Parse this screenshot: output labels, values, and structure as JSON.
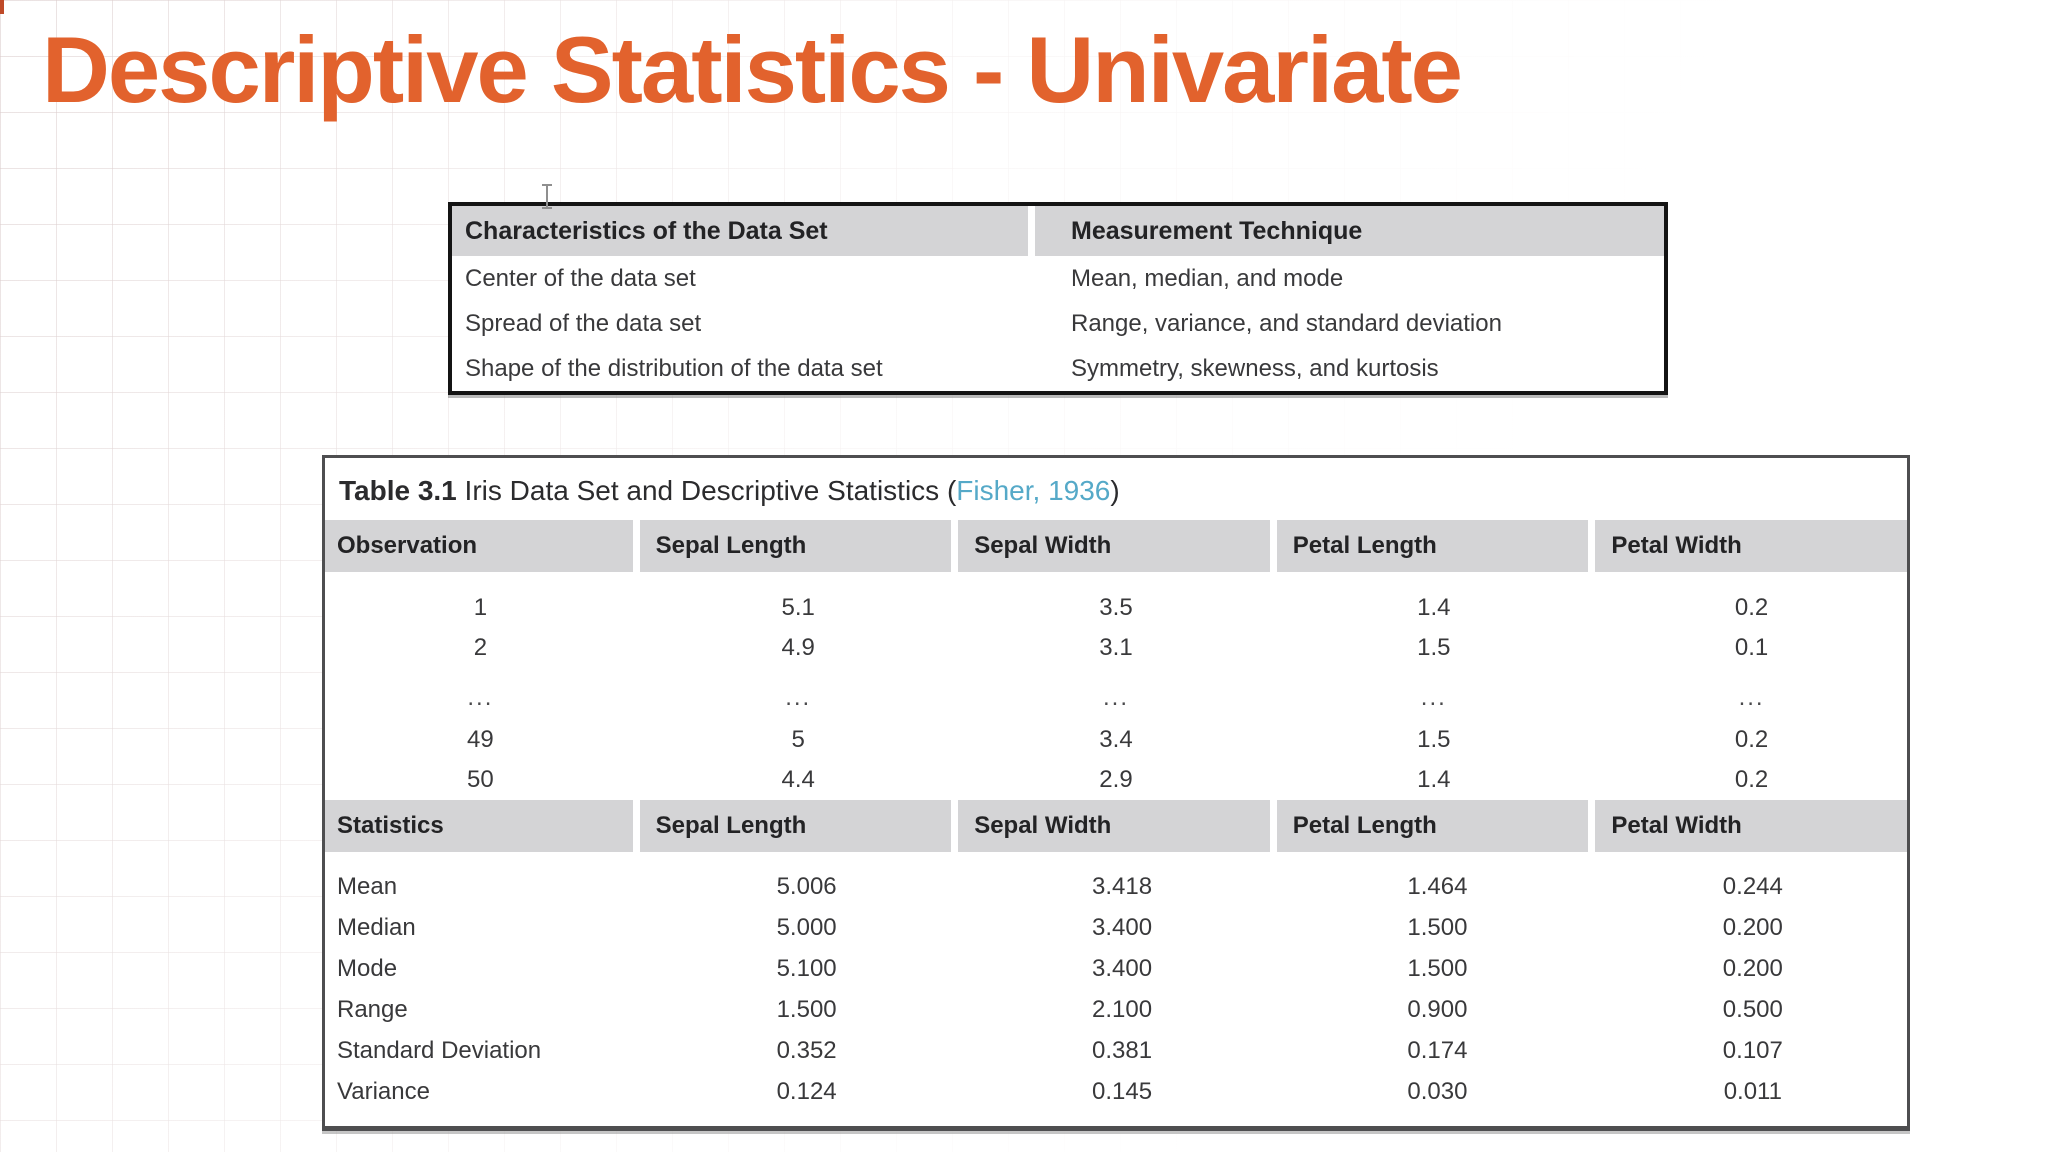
{
  "slide": {
    "title": "Descriptive Statistics - Univariate",
    "title_color": "#E2622D",
    "accent_orange": "#E2622D",
    "header_gray": "#d4d4d6",
    "cite_blue": "#55A9C8"
  },
  "characteristics_table": {
    "columns": [
      "Characteristics of the Data Set",
      "Measurement Technique"
    ],
    "rows": [
      [
        "Center of the data set",
        "Mean, median, and mode"
      ],
      [
        "Spread of the data set",
        "Range, variance, and standard deviation"
      ],
      [
        "Shape of the distribution of the data set",
        "Symmetry, skewness, and kurtosis"
      ]
    ]
  },
  "iris_table": {
    "caption": {
      "label": "Table 3.1",
      "text": " Iris Data Set and Descriptive Statistics (",
      "cite": "Fisher, 1936",
      "close": ")"
    },
    "observation_header": [
      "Observation",
      "Sepal Length",
      "Sepal Width",
      "Petal Length",
      "Petal Width"
    ],
    "observations": [
      [
        "1",
        "5.1",
        "3.5",
        "1.4",
        "0.2"
      ],
      [
        "2",
        "4.9",
        "3.1",
        "1.5",
        "0.1"
      ],
      [
        "...",
        "...",
        "...",
        "...",
        "..."
      ],
      [
        "49",
        "5",
        "3.4",
        "1.5",
        "0.2"
      ],
      [
        "50",
        "4.4",
        "2.9",
        "1.4",
        "0.2"
      ]
    ],
    "statistics_header": [
      "Statistics",
      "Sepal Length",
      "Sepal Width",
      "Petal Length",
      "Petal Width"
    ],
    "statistics": [
      [
        "Mean",
        "5.006",
        "3.418",
        "1.464",
        "0.244"
      ],
      [
        "Median",
        "5.000",
        "3.400",
        "1.500",
        "0.200"
      ],
      [
        "Mode",
        "5.100",
        "3.400",
        "1.500",
        "0.200"
      ],
      [
        "Range",
        "1.500",
        "2.100",
        "0.900",
        "0.500"
      ],
      [
        "Standard Deviation",
        "0.352",
        "0.381",
        "0.174",
        "0.107"
      ],
      [
        "Variance",
        "0.124",
        "0.145",
        "0.030",
        "0.011"
      ]
    ]
  }
}
